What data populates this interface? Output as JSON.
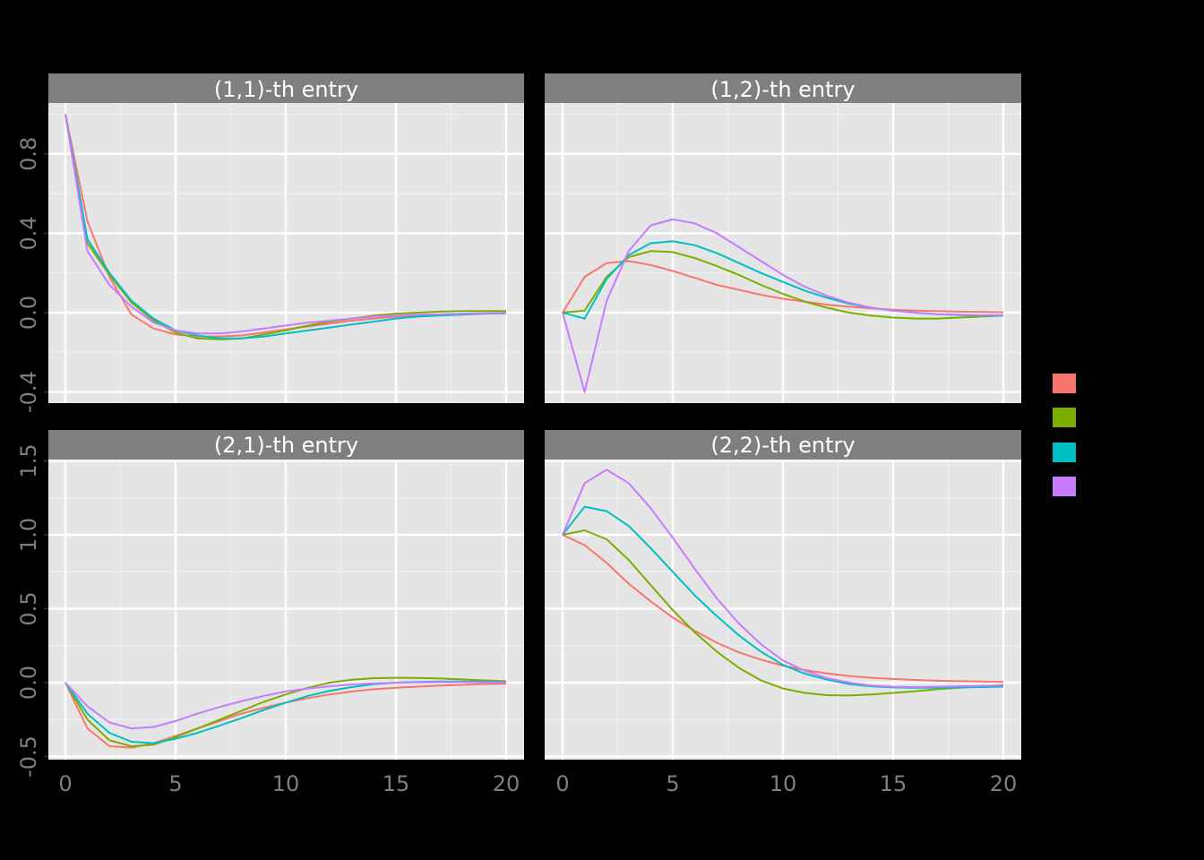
{
  "chart_data": {
    "type": "line",
    "title": "",
    "xlabel": "",
    "ylabel": "",
    "legend": {
      "position": "right",
      "title": "",
      "entries": [
        {
          "label": "",
          "color": "#F8766D"
        },
        {
          "label": "",
          "color": "#7CAE00"
        },
        {
          "label": "",
          "color": "#00BFC4"
        },
        {
          "label": "",
          "color": "#C77CFF"
        }
      ]
    },
    "grid": true,
    "x": [
      0,
      1,
      2,
      3,
      4,
      5,
      6,
      7,
      8,
      9,
      10,
      11,
      12,
      13,
      14,
      15,
      16,
      17,
      18,
      19,
      20
    ],
    "x_ticks": [
      "0",
      "5",
      "10",
      "15",
      "20"
    ],
    "facets": [
      {
        "title": "(1,1)-th entry",
        "row": 0,
        "col": 0,
        "ylim": [
          -0.45,
          1.05
        ],
        "y_ticks": [
          "-0.4",
          "0.0",
          "0.4",
          "0.8"
        ],
        "series": [
          {
            "color": "#F8766D",
            "values": [
              1.0,
              0.46,
              0.18,
              -0.01,
              -0.08,
              -0.11,
              -0.12,
              -0.12,
              -0.115,
              -0.1,
              -0.085,
              -0.07,
              -0.055,
              -0.04,
              -0.03,
              -0.02,
              -0.015,
              -0.01,
              -0.008,
              -0.005,
              -0.003
            ]
          },
          {
            "color": "#7CAE00",
            "values": [
              1.0,
              0.35,
              0.19,
              0.05,
              -0.04,
              -0.1,
              -0.13,
              -0.135,
              -0.13,
              -0.11,
              -0.09,
              -0.065,
              -0.045,
              -0.03,
              -0.015,
              -0.005,
              0.0,
              0.005,
              0.008,
              0.008,
              0.008
            ]
          },
          {
            "color": "#00BFC4",
            "values": [
              1.0,
              0.37,
              0.2,
              0.06,
              -0.03,
              -0.09,
              -0.115,
              -0.13,
              -0.13,
              -0.12,
              -0.105,
              -0.09,
              -0.075,
              -0.06,
              -0.045,
              -0.03,
              -0.02,
              -0.015,
              -0.01,
              -0.005,
              -0.003
            ]
          },
          {
            "color": "#C77CFF",
            "values": [
              1.0,
              0.31,
              0.14,
              0.03,
              -0.05,
              -0.09,
              -0.105,
              -0.105,
              -0.095,
              -0.08,
              -0.065,
              -0.05,
              -0.04,
              -0.03,
              -0.02,
              -0.015,
              -0.01,
              -0.008,
              -0.005,
              -0.003,
              -0.002
            ]
          }
        ]
      },
      {
        "title": "(1,2)-th entry",
        "row": 0,
        "col": 1,
        "ylim": [
          -0.45,
          1.05
        ],
        "y_ticks": [
          "-0.4",
          "0.0",
          "0.4",
          "0.8"
        ],
        "series": [
          {
            "color": "#F8766D",
            "values": [
              0.0,
              0.18,
              0.25,
              0.26,
              0.24,
              0.21,
              0.175,
              0.14,
              0.115,
              0.09,
              0.07,
              0.055,
              0.04,
              0.03,
              0.022,
              0.015,
              0.01,
              0.007,
              0.005,
              0.003,
              0.002
            ]
          },
          {
            "color": "#7CAE00",
            "values": [
              0.0,
              0.01,
              0.18,
              0.28,
              0.31,
              0.305,
              0.275,
              0.235,
              0.19,
              0.14,
              0.095,
              0.055,
              0.025,
              0.0,
              -0.015,
              -0.025,
              -0.03,
              -0.03,
              -0.025,
              -0.02,
              -0.015
            ]
          },
          {
            "color": "#00BFC4",
            "values": [
              0.0,
              -0.03,
              0.17,
              0.29,
              0.35,
              0.36,
              0.34,
              0.3,
              0.25,
              0.2,
              0.155,
              0.11,
              0.075,
              0.045,
              0.025,
              0.01,
              0.0,
              -0.008,
              -0.012,
              -0.015,
              -0.015
            ]
          },
          {
            "color": "#C77CFF",
            "values": [
              0.0,
              -0.4,
              0.06,
              0.31,
              0.44,
              0.47,
              0.45,
              0.4,
              0.33,
              0.26,
              0.19,
              0.13,
              0.085,
              0.05,
              0.025,
              0.01,
              0.0,
              -0.008,
              -0.01,
              -0.012,
              -0.012
            ]
          }
        ]
      },
      {
        "title": "(2,1)-th entry",
        "row": 1,
        "col": 0,
        "ylim": [
          -0.52,
          1.52
        ],
        "y_ticks": [
          "-0.5",
          "0.0",
          "0.5",
          "1.0",
          "1.5"
        ],
        "series": [
          {
            "color": "#F8766D",
            "values": [
              0.0,
              -0.31,
              -0.43,
              -0.44,
              -0.41,
              -0.36,
              -0.31,
              -0.26,
              -0.21,
              -0.17,
              -0.135,
              -0.105,
              -0.08,
              -0.06,
              -0.045,
              -0.035,
              -0.027,
              -0.02,
              -0.015,
              -0.01,
              -0.007
            ]
          },
          {
            "color": "#7CAE00",
            "values": [
              0.0,
              -0.25,
              -0.39,
              -0.43,
              -0.42,
              -0.37,
              -0.31,
              -0.25,
              -0.19,
              -0.13,
              -0.08,
              -0.035,
              0.0,
              0.02,
              0.03,
              0.033,
              0.032,
              0.028,
              0.022,
              0.015,
              0.01
            ]
          },
          {
            "color": "#00BFC4",
            "values": [
              0.0,
              -0.21,
              -0.34,
              -0.4,
              -0.41,
              -0.38,
              -0.34,
              -0.29,
              -0.24,
              -0.185,
              -0.135,
              -0.09,
              -0.055,
              -0.03,
              -0.01,
              0.0,
              0.005,
              0.008,
              0.008,
              0.007,
              0.005
            ]
          },
          {
            "color": "#C77CFF",
            "values": [
              0.0,
              -0.16,
              -0.27,
              -0.31,
              -0.3,
              -0.26,
              -0.21,
              -0.165,
              -0.125,
              -0.09,
              -0.06,
              -0.04,
              -0.025,
              -0.012,
              -0.005,
              0.0,
              0.002,
              0.003,
              0.003,
              0.002,
              0.002
            ]
          }
        ]
      },
      {
        "title": "(2,2)-th entry",
        "row": 1,
        "col": 1,
        "ylim": [
          -0.52,
          1.52
        ],
        "y_ticks": [
          "-0.5",
          "0.0",
          "0.5",
          "1.0",
          "1.5"
        ],
        "series": [
          {
            "color": "#F8766D",
            "values": [
              1.0,
              0.93,
              0.81,
              0.67,
              0.55,
              0.44,
              0.35,
              0.27,
              0.205,
              0.155,
              0.115,
              0.085,
              0.062,
              0.045,
              0.033,
              0.025,
              0.018,
              0.013,
              0.01,
              0.007,
              0.005
            ]
          },
          {
            "color": "#7CAE00",
            "values": [
              1.0,
              1.03,
              0.97,
              0.83,
              0.66,
              0.49,
              0.34,
              0.21,
              0.1,
              0.015,
              -0.04,
              -0.07,
              -0.085,
              -0.087,
              -0.08,
              -0.07,
              -0.058,
              -0.045,
              -0.035,
              -0.025,
              -0.017
            ]
          },
          {
            "color": "#00BFC4",
            "values": [
              1.0,
              1.19,
              1.16,
              1.06,
              0.91,
              0.75,
              0.59,
              0.45,
              0.32,
              0.21,
              0.12,
              0.06,
              0.02,
              -0.01,
              -0.025,
              -0.033,
              -0.035,
              -0.035,
              -0.033,
              -0.03,
              -0.027
            ]
          },
          {
            "color": "#C77CFF",
            "values": [
              1.0,
              1.35,
              1.44,
              1.35,
              1.18,
              0.98,
              0.77,
              0.57,
              0.4,
              0.26,
              0.15,
              0.08,
              0.03,
              0.0,
              -0.02,
              -0.028,
              -0.03,
              -0.028,
              -0.025,
              -0.022,
              -0.02
            ]
          }
        ]
      }
    ]
  }
}
